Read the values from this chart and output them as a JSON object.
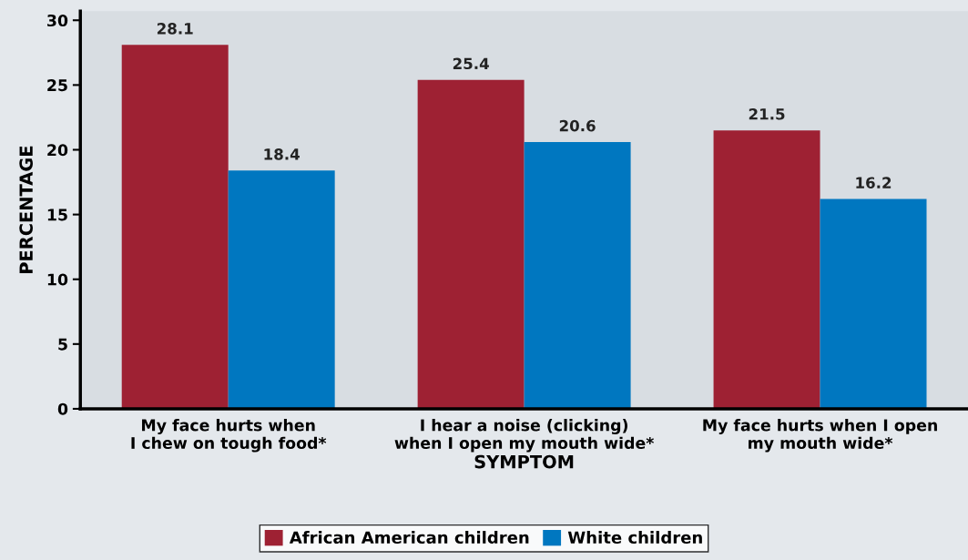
{
  "chart_data": {
    "type": "bar",
    "xlabel": "SYMPTOM",
    "ylabel": "PERCENTAGE",
    "categories": [
      "My face hurts when\nI chew on tough food*",
      "I hear a noise (clicking)\nwhen I open my mouth wide*",
      "My face hurts when I open\nmy mouth wide*"
    ],
    "series": [
      {
        "name": "African American children",
        "color": "#9e2133",
        "values": [
          28.1,
          25.4,
          21.5
        ]
      },
      {
        "name": "White children",
        "color": "#0077c0",
        "values": [
          18.4,
          20.6,
          16.2
        ]
      }
    ],
    "ylim": [
      0,
      30.7
    ],
    "yticks": [
      0,
      5,
      10,
      15,
      20,
      25,
      30
    ],
    "data_labels": true,
    "grid": false,
    "legend": "bottom"
  }
}
